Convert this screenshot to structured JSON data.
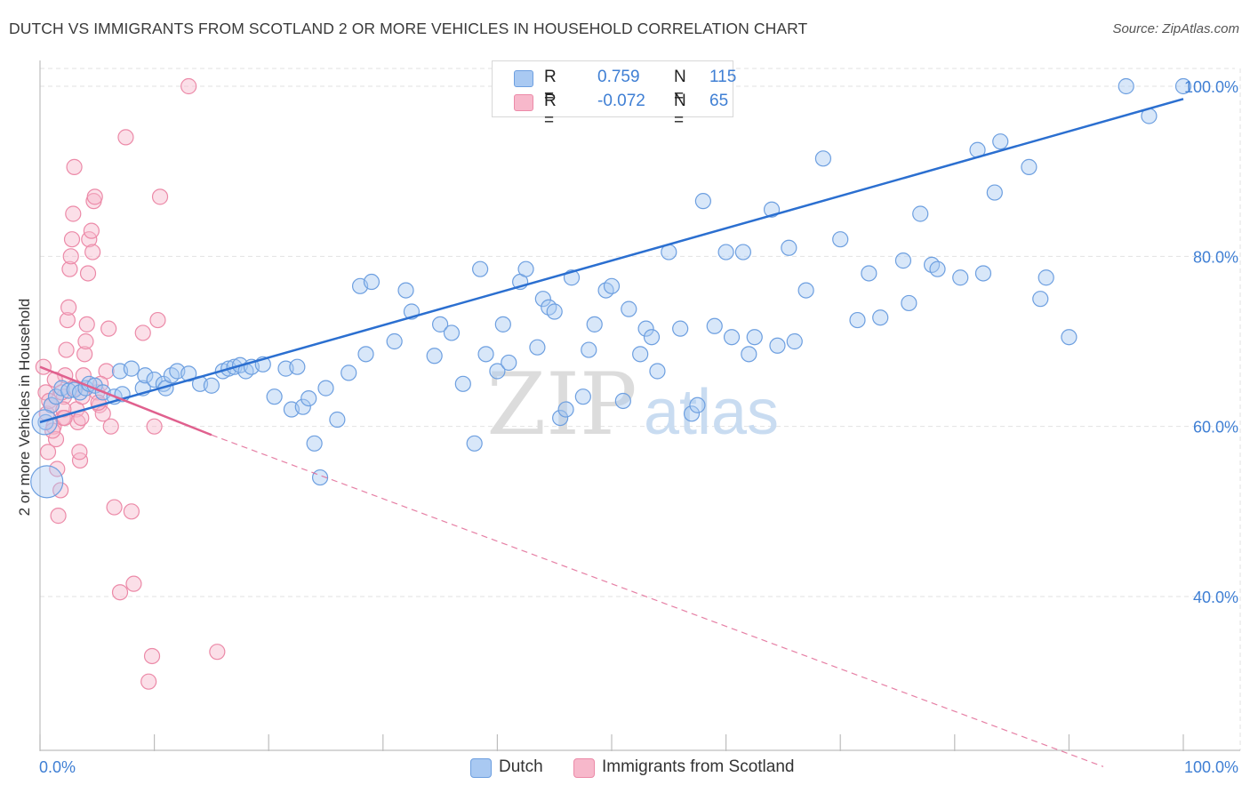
{
  "header": {
    "title": "DUTCH VS IMMIGRANTS FROM SCOTLAND 2 OR MORE VEHICLES IN HOUSEHOLD CORRELATION CHART",
    "source": "Source: ZipAtlas.com"
  },
  "watermark": {
    "zip": "ZIP",
    "atlas": "atlas"
  },
  "legend": {
    "rows": [
      {
        "r_label": "R =",
        "r_value": "0.759",
        "n_label": "N =",
        "n_value": "115"
      },
      {
        "r_label": "R =",
        "r_value": "-0.072",
        "n_label": "N =",
        "n_value": "65"
      }
    ]
  },
  "bottom_legend": {
    "series1": "Dutch",
    "series2": "Immigrants from Scotland"
  },
  "colors": {
    "dutch_fill": "#a9c9f2",
    "dutch_stroke": "#6d9fe0",
    "dutch_line": "#2b6fd0",
    "scot_fill": "#f7b8cb",
    "scot_stroke": "#ec8aa8",
    "scot_line": "#e0608e",
    "tick_text": "#3f7fd4",
    "grid": "#e2e2e2"
  },
  "chart_data": {
    "type": "scatter",
    "title": "DUTCH VS IMMIGRANTS FROM SCOTLAND 2 OR MORE VEHICLES IN HOUSEHOLD CORRELATION CHART",
    "xlabel": "",
    "ylabel": "2 or more Vehicles in Household",
    "xlim": [
      0,
      100
    ],
    "ylim": [
      20,
      102
    ],
    "x_tick_labels": [
      "0.0%",
      "100.0%"
    ],
    "y_tick_labels": [
      {
        "value": 40,
        "label": "40.0%"
      },
      {
        "value": 60,
        "label": "60.0%"
      },
      {
        "value": 80,
        "label": "80.0%"
      },
      {
        "value": 100,
        "label": "100.0%"
      }
    ],
    "grid": true,
    "legend_position": "bottom-center",
    "series": [
      {
        "name": "Dutch",
        "r": 0.759,
        "n": 115,
        "trend": {
          "x": [
            0,
            100
          ],
          "y": [
            60.5,
            98.5
          ],
          "style": "solid"
        },
        "points": [
          [
            0.5,
            60.5
          ],
          [
            1.0,
            62.5
          ],
          [
            1.4,
            63.5
          ],
          [
            1.9,
            64.5
          ],
          [
            2.5,
            64.2
          ],
          [
            3.0,
            64.3
          ],
          [
            3.5,
            64.0
          ],
          [
            4.0,
            64.5
          ],
          [
            4.3,
            65.0
          ],
          [
            4.8,
            64.8
          ],
          [
            5.5,
            64.0
          ],
          [
            6.5,
            63.5
          ],
          [
            7.2,
            63.8
          ],
          [
            7.0,
            66.5
          ],
          [
            8.0,
            66.8
          ],
          [
            9.0,
            64.5
          ],
          [
            9.2,
            66.0
          ],
          [
            10.0,
            65.5
          ],
          [
            10.8,
            65.0
          ],
          [
            11.0,
            64.5
          ],
          [
            11.5,
            66.0
          ],
          [
            12.0,
            66.5
          ],
          [
            13.0,
            66.2
          ],
          [
            14.0,
            65.0
          ],
          [
            15.0,
            64.8
          ],
          [
            16.0,
            66.5
          ],
          [
            16.5,
            66.8
          ],
          [
            17.0,
            67.0
          ],
          [
            17.5,
            67.2
          ],
          [
            18.0,
            66.5
          ],
          [
            18.5,
            67.0
          ],
          [
            19.5,
            67.3
          ],
          [
            20.5,
            63.5
          ],
          [
            21.5,
            66.8
          ],
          [
            22.0,
            62.0
          ],
          [
            22.5,
            67.0
          ],
          [
            23.0,
            62.3
          ],
          [
            23.5,
            63.3
          ],
          [
            24.0,
            58.0
          ],
          [
            24.5,
            54.0
          ],
          [
            25.0,
            64.5
          ],
          [
            26.0,
            60.8
          ],
          [
            27.0,
            66.3
          ],
          [
            28.5,
            68.5
          ],
          [
            28.0,
            76.5
          ],
          [
            29.0,
            77.0
          ],
          [
            31.0,
            70.0
          ],
          [
            32.5,
            73.5
          ],
          [
            32.0,
            76.0
          ],
          [
            34.5,
            68.3
          ],
          [
            35.0,
            72.0
          ],
          [
            36.0,
            71.0
          ],
          [
            37.0,
            65.0
          ],
          [
            38.5,
            78.5
          ],
          [
            38.0,
            58.0
          ],
          [
            39.0,
            68.5
          ],
          [
            40.0,
            66.5
          ],
          [
            40.5,
            72.0
          ],
          [
            41.0,
            67.5
          ],
          [
            42.0,
            77.0
          ],
          [
            42.5,
            78.5
          ],
          [
            43.5,
            69.3
          ],
          [
            44.0,
            75.0
          ],
          [
            44.5,
            74.0
          ],
          [
            45.0,
            73.5
          ],
          [
            45.5,
            61.0
          ],
          [
            46.0,
            62.0
          ],
          [
            46.5,
            77.5
          ],
          [
            47.5,
            63.5
          ],
          [
            48.0,
            69.0
          ],
          [
            48.5,
            72.0
          ],
          [
            49.5,
            76.0
          ],
          [
            50.0,
            76.5
          ],
          [
            51.0,
            63.0
          ],
          [
            51.5,
            73.8
          ],
          [
            52.5,
            68.5
          ],
          [
            53.0,
            71.5
          ],
          [
            53.5,
            70.5
          ],
          [
            54.0,
            66.5
          ],
          [
            55.0,
            80.5
          ],
          [
            56.0,
            71.5
          ],
          [
            57.0,
            61.5
          ],
          [
            57.5,
            62.5
          ],
          [
            58.0,
            86.5
          ],
          [
            59.0,
            71.8
          ],
          [
            60.0,
            80.5
          ],
          [
            60.5,
            70.5
          ],
          [
            61.5,
            80.5
          ],
          [
            62.0,
            68.5
          ],
          [
            62.5,
            70.5
          ],
          [
            64.0,
            85.5
          ],
          [
            64.5,
            69.5
          ],
          [
            65.5,
            81.0
          ],
          [
            66.0,
            70.0
          ],
          [
            67.0,
            76.0
          ],
          [
            68.5,
            91.5
          ],
          [
            70.0,
            82.0
          ],
          [
            71.5,
            72.5
          ],
          [
            72.5,
            78.0
          ],
          [
            73.5,
            72.8
          ],
          [
            75.5,
            79.5
          ],
          [
            76.0,
            74.5
          ],
          [
            77.0,
            85.0
          ],
          [
            78.0,
            79.0
          ],
          [
            78.5,
            78.5
          ],
          [
            80.5,
            77.5
          ],
          [
            82.5,
            78.0
          ],
          [
            82.0,
            92.5
          ],
          [
            83.5,
            87.5
          ],
          [
            84.0,
            93.5
          ],
          [
            86.5,
            90.5
          ],
          [
            87.5,
            75.0
          ],
          [
            88.0,
            77.5
          ],
          [
            90.0,
            70.5
          ],
          [
            95.0,
            100.0
          ],
          [
            97.0,
            96.5
          ],
          [
            100.0,
            100.0
          ]
        ]
      },
      {
        "name": "Immigrants from Scotland",
        "r": -0.072,
        "n": 65,
        "trend": {
          "x": [
            0,
            15,
            93
          ],
          "y": [
            67.0,
            59.0,
            20.0
          ],
          "style": "solid-then-dashed"
        },
        "points": [
          [
            0.3,
            67.0
          ],
          [
            0.5,
            64.0
          ],
          [
            0.6,
            61.5
          ],
          [
            0.8,
            63.0
          ],
          [
            1.0,
            62.5
          ],
          [
            1.2,
            60.0
          ],
          [
            1.4,
            58.5
          ],
          [
            1.5,
            55.0
          ],
          [
            1.6,
            49.5
          ],
          [
            1.8,
            52.5
          ],
          [
            2.0,
            61.0
          ],
          [
            2.1,
            63.5
          ],
          [
            2.2,
            66.0
          ],
          [
            2.3,
            69.0
          ],
          [
            2.4,
            72.5
          ],
          [
            2.5,
            74.0
          ],
          [
            2.6,
            78.5
          ],
          [
            2.7,
            80.0
          ],
          [
            2.8,
            82.0
          ],
          [
            2.9,
            85.0
          ],
          [
            3.0,
            90.5
          ],
          [
            3.1,
            64.5
          ],
          [
            3.2,
            62.0
          ],
          [
            3.3,
            60.5
          ],
          [
            3.5,
            56.0
          ],
          [
            3.6,
            61.0
          ],
          [
            3.7,
            63.5
          ],
          [
            3.8,
            66.0
          ],
          [
            3.9,
            68.5
          ],
          [
            4.0,
            70.0
          ],
          [
            4.1,
            72.0
          ],
          [
            4.2,
            78.0
          ],
          [
            4.3,
            82.0
          ],
          [
            4.5,
            83.0
          ],
          [
            4.6,
            80.5
          ],
          [
            4.7,
            86.5
          ],
          [
            4.8,
            87.0
          ],
          [
            5.0,
            64.0
          ],
          [
            5.2,
            62.5
          ],
          [
            5.5,
            61.5
          ],
          [
            5.8,
            66.5
          ],
          [
            6.0,
            71.5
          ],
          [
            6.2,
            60.0
          ],
          [
            6.5,
            50.5
          ],
          [
            7.0,
            40.5
          ],
          [
            7.5,
            94.0
          ],
          [
            8.0,
            50.0
          ],
          [
            8.2,
            41.5
          ],
          [
            9.0,
            71.0
          ],
          [
            9.5,
            30.0
          ],
          [
            9.8,
            33.0
          ],
          [
            10.0,
            60.0
          ],
          [
            10.3,
            72.5
          ],
          [
            10.5,
            87.0
          ],
          [
            0.7,
            57.0
          ],
          [
            1.1,
            59.5
          ],
          [
            1.3,
            65.5
          ],
          [
            1.9,
            64.0
          ],
          [
            2.05,
            62.0
          ],
          [
            2.15,
            61.0
          ],
          [
            3.45,
            57.0
          ],
          [
            5.1,
            62.8
          ],
          [
            5.3,
            65.0
          ],
          [
            13.0,
            100.0
          ],
          [
            15.5,
            33.5
          ]
        ]
      }
    ]
  }
}
